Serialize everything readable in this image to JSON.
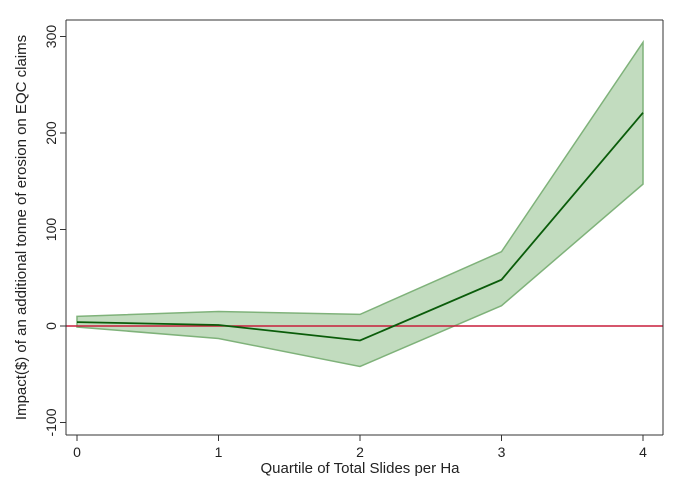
{
  "chart_data": {
    "type": "line",
    "title": "",
    "xlabel": "Quartile of Total Slides per Ha",
    "ylabel": "Impact($) of an additional tonne of erosion on EQC claims",
    "xlim": [
      0,
      4
    ],
    "ylim": [
      -100,
      300
    ],
    "x_ticks": [
      0,
      1,
      2,
      3,
      4
    ],
    "y_ticks": [
      -100,
      0,
      100,
      200,
      300
    ],
    "grid": false,
    "legend": "none",
    "x": [
      0,
      1,
      2,
      3,
      4
    ],
    "series": [
      {
        "values": [
          4,
          1,
          -15,
          48,
          221
        ],
        "ci_lower": [
          -1,
          -13,
          -42,
          21,
          147
        ],
        "ci_upper": [
          10,
          15,
          12,
          77,
          294
        ]
      }
    ],
    "reference_line": {
      "y": 0
    },
    "colors": {
      "line": "#0a5c0a",
      "band_fill": "#c2dcbf",
      "band_edge": "#7fb27a",
      "reference": "#c81e3c",
      "axis": "#333333"
    }
  }
}
